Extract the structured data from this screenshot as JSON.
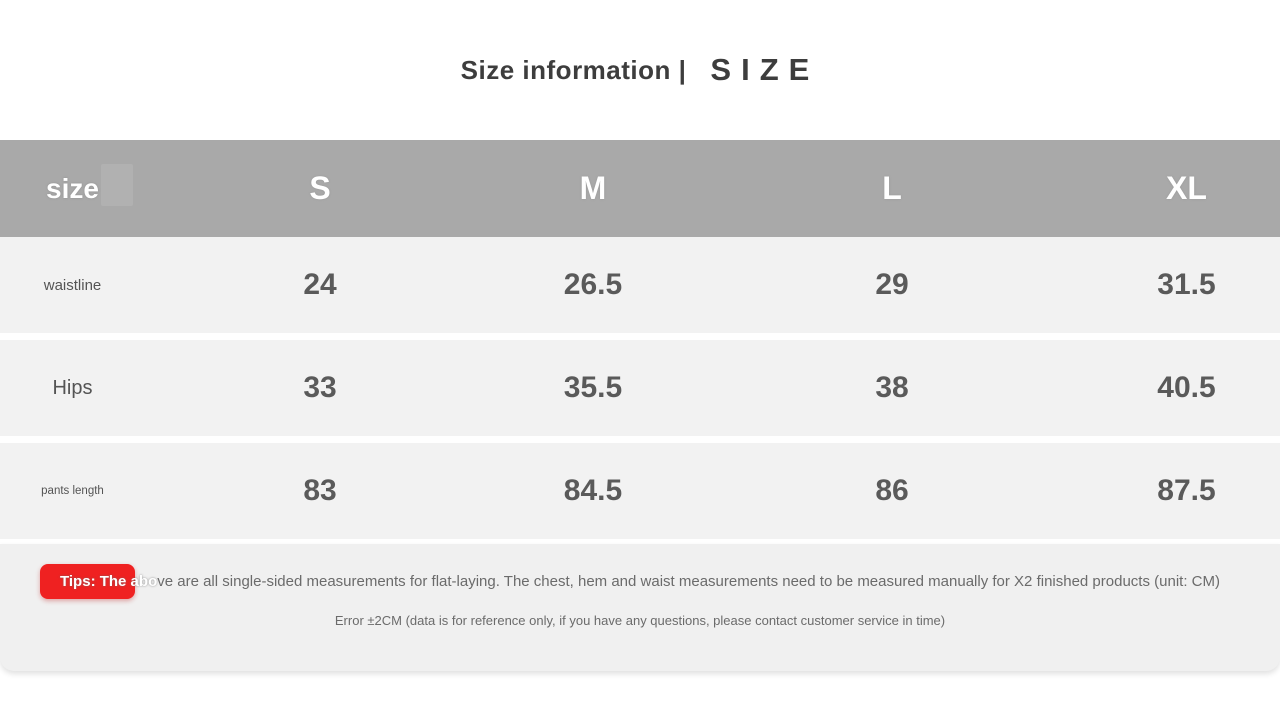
{
  "page": {
    "title_left": "Size information |",
    "title_right": "SIZE"
  },
  "table": {
    "header": {
      "label": "size",
      "columns": [
        "S",
        "M",
        "L",
        "XL"
      ]
    },
    "rows": [
      {
        "label": "waistline",
        "values": [
          "24",
          "26.5",
          "29",
          "31.5"
        ]
      },
      {
        "label": "Hips",
        "values": [
          "33",
          "35.5",
          "38",
          "40.5"
        ]
      },
      {
        "label": "pants length",
        "values": [
          "83",
          "84.5",
          "86",
          "87.5"
        ]
      }
    ]
  },
  "footer": {
    "tip_highlight": "Tips: The abo",
    "tip_rest": "ve are all single-sided measurements for flat-laying. The chest, hem and waist measurements need to be measured manually for X2 finished products (unit: CM)",
    "error_note": "Error ±2CM (data is for reference only, if you have any questions, please contact customer service in time)"
  },
  "colors": {
    "header_bg": "#a9a9a9",
    "row_bg": "#f2f2f2",
    "footer_bg": "#f0f0f0",
    "badge_red": "#ef2121",
    "title_text": "#3d3d3d",
    "value_text": "#5a5a5a"
  }
}
